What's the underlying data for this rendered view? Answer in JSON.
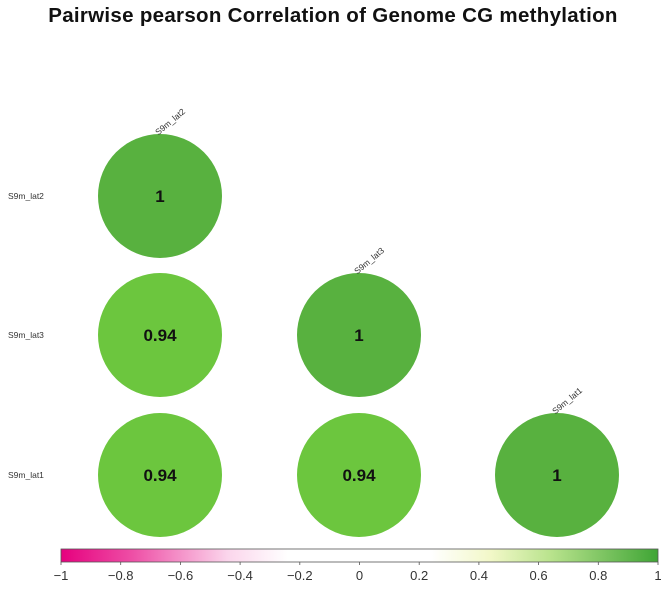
{
  "title": "Pairwise pearson Correlation of Genome CG methylation",
  "chart_data": {
    "type": "correlation-matrix",
    "title": "Pairwise pearson Correlation of Genome CG methylation",
    "shape": "circle",
    "layout": "lower-triangle",
    "row_labels": [
      "S9m_lat2",
      "S9m_lat3",
      "S9m_lat1"
    ],
    "column_labels": [
      "S9m_lat2",
      "S9m_lat3",
      "S9m_lat1"
    ],
    "cells": [
      {
        "row": 0,
        "col": 0,
        "value": 1,
        "label": "1"
      },
      {
        "row": 1,
        "col": 0,
        "value": 0.94,
        "label": "0.94"
      },
      {
        "row": 1,
        "col": 1,
        "value": 1,
        "label": "1"
      },
      {
        "row": 2,
        "col": 0,
        "value": 0.94,
        "label": "0.94"
      },
      {
        "row": 2,
        "col": 1,
        "value": 0.94,
        "label": "0.94"
      },
      {
        "row": 2,
        "col": 2,
        "value": 1,
        "label": "1"
      }
    ],
    "colorbar": {
      "range": [
        -1,
        1
      ],
      "ticks": [
        "−1",
        "−0.8",
        "−0.6",
        "−0.4",
        "−0.2",
        "0",
        "0.2",
        "0.4",
        "0.6",
        "0.8",
        "1"
      ],
      "tick_values": [
        -1,
        -0.8,
        -0.6,
        -0.4,
        -0.2,
        0,
        0.2,
        0.4,
        0.6,
        0.8,
        1
      ],
      "colors": {
        "low": "#e6007e",
        "mid": "#ffffff",
        "high": "#3fa535",
        "value_1": "#58b13f",
        "value_094": "#6cc63e"
      }
    }
  }
}
